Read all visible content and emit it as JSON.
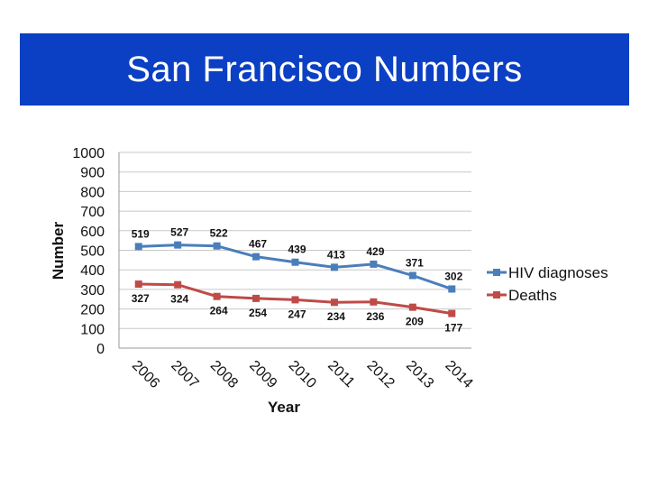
{
  "slide": {
    "title": "San Francisco Numbers",
    "title_bg": "#0b3fc4"
  },
  "chart_data": {
    "type": "line",
    "title": "",
    "xlabel": "Year",
    "ylabel": "Number",
    "categories": [
      "2006",
      "2007",
      "2008",
      "2009",
      "2010",
      "2011",
      "2012",
      "2013",
      "2014"
    ],
    "ylim": [
      0,
      1000
    ],
    "yticks": [
      "0",
      "100",
      "200",
      "300",
      "400",
      "500",
      "600",
      "700",
      "800",
      "900",
      "1000"
    ],
    "grid": true,
    "legend_position": "right",
    "series": [
      {
        "name": "HIV diagnoses",
        "color": "#4a7ebb",
        "values": [
          519,
          527,
          522,
          467,
          439,
          413,
          429,
          371,
          302
        ],
        "label_side": "above"
      },
      {
        "name": "Deaths",
        "color": "#be4b48",
        "values": [
          327,
          324,
          264,
          254,
          247,
          234,
          236,
          209,
          177
        ],
        "label_side": "below"
      }
    ]
  }
}
